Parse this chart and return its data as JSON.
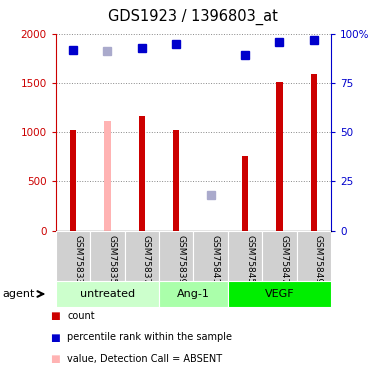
{
  "title": "GDS1923 / 1396803_at",
  "samples": [
    "GSM75833",
    "GSM75835",
    "GSM75837",
    "GSM75839",
    "GSM75841",
    "GSM75845",
    "GSM75847",
    "GSM75849"
  ],
  "bar_values": [
    1020,
    null,
    1160,
    1020,
    null,
    760,
    1510,
    1590
  ],
  "bar_absent_values": [
    null,
    1110,
    null,
    null,
    null,
    null,
    null,
    null
  ],
  "rank_values": [
    92,
    null,
    93,
    95,
    null,
    89,
    96,
    97
  ],
  "rank_absent_values": [
    null,
    91,
    null,
    null,
    18,
    null,
    null,
    null
  ],
  "bar_color": "#cc0000",
  "bar_absent_color": "#ffb3b3",
  "rank_color": "#0000cc",
  "rank_absent_color": "#aaaacc",
  "groups": [
    {
      "label": "untreated",
      "start": 0,
      "end": 3,
      "color": "#ccffcc"
    },
    {
      "label": "Ang-1",
      "start": 3,
      "end": 5,
      "color": "#aaffaa"
    },
    {
      "label": "VEGF",
      "start": 5,
      "end": 8,
      "color": "#00ee00"
    }
  ],
  "ylim_left": [
    0,
    2000
  ],
  "ylim_right": [
    0,
    100
  ],
  "yticks_left": [
    0,
    500,
    1000,
    1500,
    2000
  ],
  "ytick_labels_left": [
    "0",
    "500",
    "1000",
    "1500",
    "2000"
  ],
  "yticks_right": [
    0,
    25,
    50,
    75,
    100
  ],
  "ytick_labels_right": [
    "0",
    "25",
    "50",
    "75",
    "100%"
  ],
  "left_axis_color": "#cc0000",
  "right_axis_color": "#0000cc",
  "bar_width": 0.18,
  "marker_size": 6
}
